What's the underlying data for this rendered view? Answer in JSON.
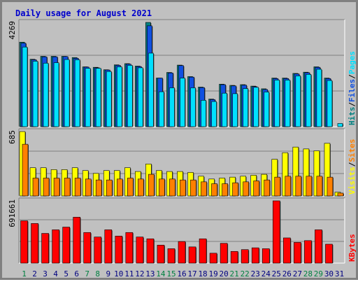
{
  "colors": {
    "background": "#c0c0c0",
    "plot_bg": "#c0c0c0",
    "title": "#0000cc",
    "weekday_label": "#008040",
    "weekend_label": "#000080",
    "hits": "#008080",
    "files": "#1050e0",
    "pages": "#00e0ff",
    "visits": "#ffff00",
    "sites": "#ff8000",
    "kbytes": "#ff0000"
  },
  "chart_data": {
    "type": "bar",
    "title": "Daily usage for August 2021",
    "categories": [
      "1",
      "2",
      "3",
      "4",
      "5",
      "6",
      "7",
      "8",
      "9",
      "10",
      "11",
      "12",
      "13",
      "14",
      "15",
      "16",
      "17",
      "18",
      "19",
      "20",
      "21",
      "22",
      "23",
      "24",
      "25",
      "26",
      "27",
      "28",
      "29",
      "30",
      "31"
    ],
    "weekend_days": [
      "1",
      "7",
      "8",
      "14",
      "15",
      "21",
      "22",
      "28",
      "29"
    ],
    "panels": [
      {
        "name": "hits-files-pages",
        "max_label": "4269",
        "ymax": 4269,
        "legend": [
          {
            "text": "Hits",
            "color_key": "hits"
          },
          {
            "text": "/",
            "color_key": "none"
          },
          {
            "text": "Files",
            "color_key": "files"
          },
          {
            "text": "/",
            "color_key": "none"
          },
          {
            "text": "Pages",
            "color_key": "pages"
          }
        ],
        "series": [
          {
            "name": "Hits",
            "values": [
              3460,
              2760,
              2880,
              2880,
              2880,
              2830,
              2450,
              2430,
              2330,
              2530,
              2580,
              2480,
              4269,
              1990,
              2220,
              2520,
              2050,
              1620,
              1130,
              1740,
              1690,
              1720,
              1660,
              1550,
              1990,
              1990,
              2180,
              2230,
              2450,
              1990,
              0
            ]
          },
          {
            "name": "Files",
            "values": [
              3420,
              2740,
              2860,
              2860,
              2870,
              2800,
              2440,
              2410,
              2320,
              2510,
              2560,
              2460,
              4130,
              1990,
              2200,
              2500,
              2030,
              1600,
              1110,
              1720,
              1670,
              1700,
              1640,
              1520,
              1970,
              1970,
              2160,
              2210,
              2430,
              1970,
              0
            ]
          },
          {
            "name": "Pages",
            "values": [
              3260,
              2680,
              2600,
              2620,
              2750,
              2740,
              2390,
              2390,
              2260,
              2450,
              2510,
              2410,
              3010,
              1430,
              1590,
              1990,
              1590,
              1080,
              1030,
              1370,
              1350,
              1560,
              1610,
              1420,
              1910,
              1910,
              2080,
              2140,
              2350,
              1890,
              130
            ]
          }
        ]
      },
      {
        "name": "visits-sites",
        "max_label": "685",
        "ymax": 685,
        "legend": [
          {
            "text": "Visits",
            "color_key": "visits"
          },
          {
            "text": "/",
            "color_key": "none"
          },
          {
            "text": "Sites",
            "color_key": "sites"
          }
        ],
        "series": [
          {
            "name": "Visits",
            "values": [
              685,
              300,
              300,
              280,
              280,
              300,
              270,
              240,
              270,
              270,
              300,
              260,
              340,
              270,
              260,
              260,
              250,
              210,
              180,
              190,
              200,
              210,
              220,
              230,
              390,
              460,
              520,
              500,
              480,
              560,
              40
            ]
          },
          {
            "name": "Sites",
            "values": [
              550,
              190,
              190,
              190,
              190,
              190,
              180,
              170,
              170,
              180,
              190,
              180,
              230,
              180,
              180,
              170,
              170,
              150,
              130,
              130,
              140,
              150,
              160,
              170,
              200,
              210,
              210,
              210,
              210,
              200,
              30
            ]
          }
        ]
      },
      {
        "name": "kbytes",
        "max_label": "691661",
        "ymax": 691661,
        "legend": [
          {
            "text": "KBytes",
            "color_key": "kbytes"
          }
        ],
        "series": [
          {
            "name": "KBytes",
            "values": [
              470000,
              440000,
              330000,
              370000,
              400000,
              510000,
              340000,
              290000,
              370000,
              300000,
              340000,
              290000,
              270000,
              200000,
              160000,
              240000,
              180000,
              270000,
              110000,
              220000,
              130000,
              150000,
              170000,
              160000,
              691661,
              280000,
              230000,
              250000,
              370000,
              210000,
              0
            ]
          }
        ]
      }
    ]
  }
}
